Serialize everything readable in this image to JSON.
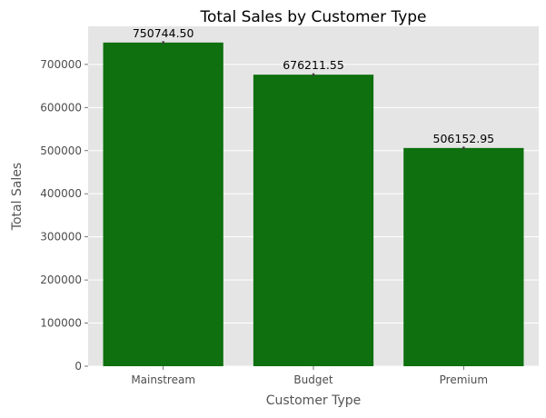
{
  "chart_data": {
    "type": "bar",
    "title": "Total Sales by Customer Type",
    "xlabel": "Customer Type",
    "ylabel": "Total Sales",
    "categories": [
      "Mainstream",
      "Budget",
      "Premium"
    ],
    "values": [
      750744.5,
      676211.55,
      506152.95
    ],
    "value_labels": [
      "750744.50",
      "676211.55",
      "506152.95"
    ],
    "ylim": [
      0,
      788281.7
    ],
    "yticks": [
      0,
      100000,
      200000,
      300000,
      400000,
      500000,
      600000,
      700000
    ],
    "ytick_labels": [
      "0",
      "100000",
      "200000",
      "300000",
      "400000",
      "500000",
      "600000",
      "700000"
    ],
    "grid": true,
    "colors": {
      "bar": "#0e700e",
      "plot_background": "#e5e5e5",
      "grid": "#ffffff",
      "error_bar": "#424242"
    }
  }
}
